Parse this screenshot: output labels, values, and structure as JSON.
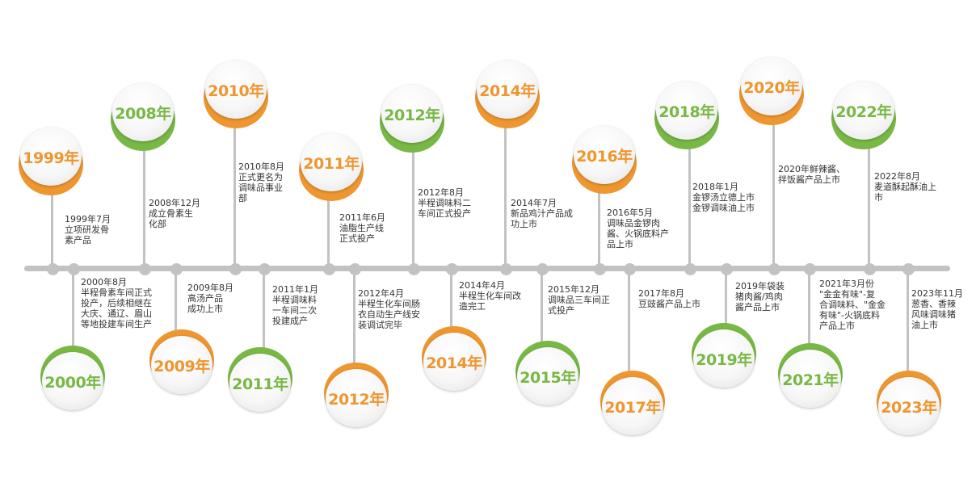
{
  "colors": {
    "orange": "#ee9630",
    "green": "#78b845",
    "axis": "#c2c2c2"
  },
  "events": [
    {
      "year": "1999年",
      "side": "top",
      "color": "orange",
      "lines": [
        "1999年7月",
        "立项研发骨",
        "素产品"
      ]
    },
    {
      "year": "2000年",
      "side": "bottom",
      "color": "green",
      "lines": [
        "2000年8月",
        "半程骨素车间正式",
        "投产，后续相继在",
        "大庆、通辽、眉山",
        "等地投建车间生产"
      ]
    },
    {
      "year": "2008年",
      "side": "top",
      "color": "green",
      "lines": [
        "2008年12月",
        "成立骨素生",
        "化部"
      ]
    },
    {
      "year": "2009年",
      "side": "bottom",
      "color": "orange",
      "lines": [
        "2009年8月",
        "高汤产品",
        "成功上市"
      ]
    },
    {
      "year": "2010年",
      "side": "top",
      "color": "orange",
      "lines": [
        "2010年8月",
        "正式更名为",
        "调味品事业",
        "部"
      ]
    },
    {
      "year": "2011年",
      "side": "bottom",
      "color": "green",
      "lines": [
        "2011年1月",
        "半程调味料",
        "一车间二次",
        "投建成产"
      ]
    },
    {
      "year": "2011年",
      "side": "top",
      "color": "orange",
      "lines": [
        "2011年6月",
        "油脂生产线",
        "正式投产"
      ]
    },
    {
      "year": "2012年",
      "side": "bottom",
      "color": "orange",
      "lines": [
        "2012年4月",
        "半程生化车间肠",
        "衣自动生产线安",
        "装调试完毕"
      ]
    },
    {
      "year": "2012年",
      "side": "top",
      "color": "green",
      "lines": [
        "2012年8月",
        "半程调味料二",
        "车间正式投产"
      ]
    },
    {
      "year": "2014年",
      "side": "bottom",
      "color": "orange",
      "lines": [
        "2014年4月",
        "半程生化车间改",
        "造完工"
      ]
    },
    {
      "year": "2014年",
      "side": "top",
      "color": "orange",
      "lines": [
        "2014年7月",
        "新品鸡汁产品成",
        "功上市"
      ]
    },
    {
      "year": "2015年",
      "side": "bottom",
      "color": "green",
      "lines": [
        "2015年12月",
        "调味品三车间正",
        "式投产"
      ]
    },
    {
      "year": "2016年",
      "side": "top",
      "color": "orange",
      "lines": [
        "2016年5月",
        "调味品金锣肉",
        "酱、火锅底料产",
        "品上市"
      ]
    },
    {
      "year": "2017年",
      "side": "bottom",
      "color": "orange",
      "lines": [
        "2017年8月",
        "豆豉酱产品上市"
      ]
    },
    {
      "year": "2018年",
      "side": "top",
      "color": "green",
      "lines": [
        "2018年1月",
        "金锣汤立德上市",
        "金锣调味油上市"
      ]
    },
    {
      "year": "2019年",
      "side": "bottom",
      "color": "green",
      "lines": [
        "2019年袋装",
        "猪肉酱/鸡肉",
        "酱产品上市"
      ]
    },
    {
      "year": "2020年",
      "side": "top",
      "color": "orange",
      "lines": [
        "2020年鲜辣酱、",
        "拌饭酱产品上市"
      ]
    },
    {
      "year": "2021年",
      "side": "bottom",
      "color": "green",
      "lines": [
        "2021年3月份",
        "\"金金有味\"-复",
        "合调味料、\"金金",
        "有味\"-火锅底料",
        "产品上市"
      ]
    },
    {
      "year": "2022年",
      "side": "top",
      "color": "green",
      "lines": [
        "2022年8月",
        "麦道酥起酥油上",
        "市"
      ]
    },
    {
      "year": "2023年",
      "side": "bottom",
      "color": "orange",
      "lines": [
        "2023年11月",
        "葱香、香辣",
        "风味调味猪",
        "油上市"
      ]
    }
  ]
}
